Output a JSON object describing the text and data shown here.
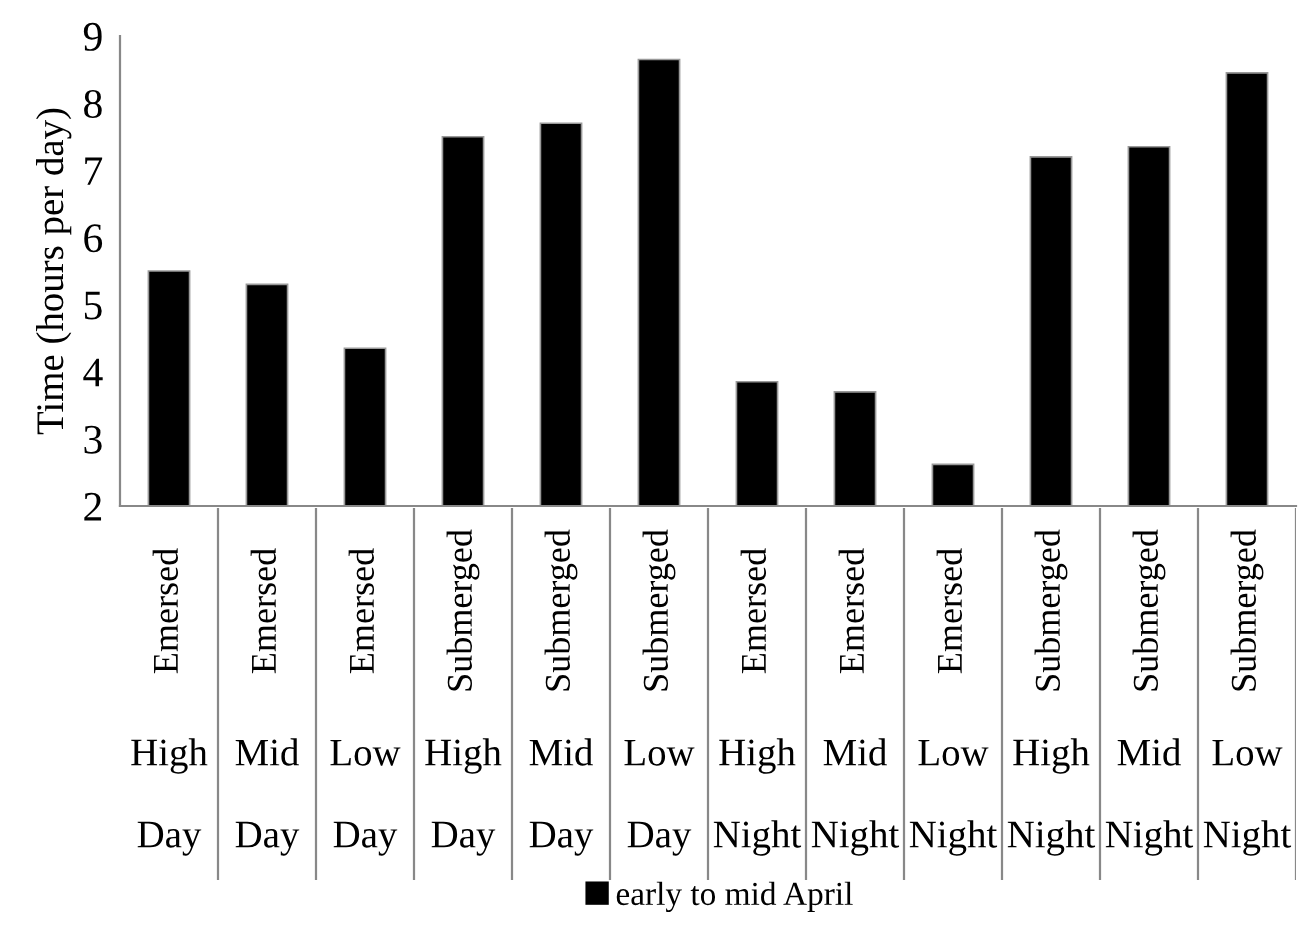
{
  "chart_data": {
    "type": "bar",
    "ylabel": "Time (hours per day)",
    "categories": [
      "Emersed\nHigh\nDay",
      "Emersed\nMid\nDay",
      "Emersed\nLow\nDay",
      "Submerged\nHigh\nDay",
      "Submerged\nMid\nDay",
      "Submerged\nLow\nDay",
      "Emersed\nHigh\nNight",
      "Emersed\nMid\nNight",
      "Emersed\nLow\nNight",
      "Submerged\nHigh\nNight",
      "Submerged\nMid\nNight",
      "Submerged\nLow\nNight"
    ],
    "series": [
      {
        "name": "early to mid April",
        "color": "#000000",
        "values": [
          5.5,
          5.3,
          4.35,
          7.5,
          7.7,
          8.65,
          3.85,
          3.7,
          2.62,
          7.2,
          7.35,
          8.45
        ]
      }
    ],
    "ylim": [
      2,
      9
    ],
    "yticks": [
      2,
      3,
      4,
      5,
      6,
      7,
      8,
      9
    ],
    "grid": false,
    "legend": "bottom"
  }
}
